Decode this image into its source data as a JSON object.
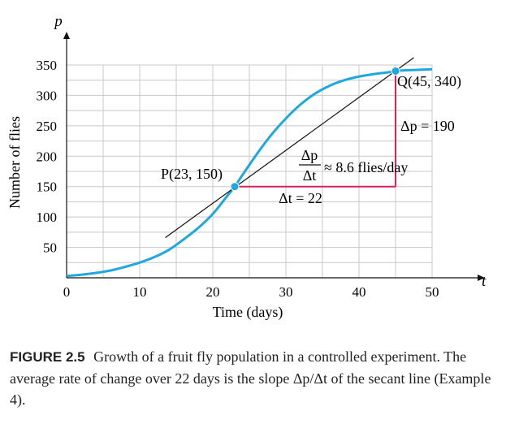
{
  "chart_data": {
    "type": "line",
    "xlabel": "Time (days)",
    "ylabel": "Number of flies",
    "x_axis_symbol": "t",
    "y_axis_symbol": "p",
    "xlim": [
      0,
      50
    ],
    "ylim": [
      0,
      350
    ],
    "x_ticks": [
      0,
      10,
      20,
      30,
      40,
      50
    ],
    "y_ticks": [
      50,
      100,
      150,
      200,
      250,
      300,
      350
    ],
    "grid": true,
    "series": [
      {
        "color": "#1fa7e0",
        "x": [
          0,
          2,
          4,
          6,
          8,
          10,
          12,
          14,
          16,
          18,
          20,
          22,
          23,
          24,
          26,
          28,
          30,
          32,
          34,
          36,
          38,
          40,
          42,
          44,
          45,
          46,
          48,
          50
        ],
        "y": [
          3,
          5,
          8,
          12,
          18,
          25,
          34,
          46,
          63,
          82,
          105,
          135,
          150,
          168,
          203,
          235,
          262,
          285,
          303,
          316,
          325,
          331,
          335,
          338,
          340,
          341,
          342,
          343
        ]
      }
    ],
    "secant_line": {
      "color": "#111111",
      "x": [
        13.5,
        47.5
      ],
      "y": [
        66,
        362
      ]
    },
    "points": [
      {
        "name": "P",
        "x": 23,
        "y": 150,
        "label": "P(23, 150)"
      },
      {
        "name": "Q",
        "x": 45,
        "y": 340,
        "label": "Q(45, 340)"
      }
    ],
    "triangle": {
      "color": "#d6255a",
      "from": [
        23,
        150
      ],
      "corner": [
        45,
        150
      ],
      "to": [
        45,
        340
      ]
    },
    "annotations": {
      "delta_t": "Δt = 22",
      "delta_p": "Δp = 190",
      "rate_num": "Δp",
      "rate_den": "Δt",
      "rate_text": "≈ 8.6 flies/day"
    }
  },
  "caption": {
    "label": "FIGURE 2.5",
    "text": "Growth of a fruit fly population in a controlled experiment. The average rate of change over 22 days is the slope Δp/Δt of the secant line (Example 4)."
  }
}
